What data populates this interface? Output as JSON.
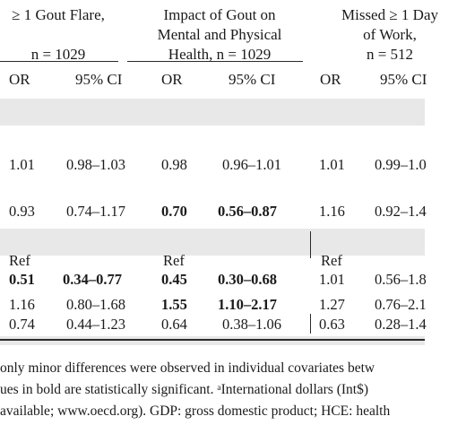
{
  "headers": {
    "col1": [
      "≥ 1 Gout Flare,",
      "n = 1029"
    ],
    "col2": [
      "Impact of Gout on",
      "Mental and Physical",
      "Health, n = 1029"
    ],
    "col3": [
      "Missed ≥ 1 Day",
      "of Work,",
      "n = 512"
    ]
  },
  "subheaders": {
    "or": "OR",
    "ci": "95% CI"
  },
  "rows": [
    [
      "1.01",
      "0.98–1.03",
      "0.98",
      "0.96–1.01",
      "1.01",
      "0.99–1.0"
    ],
    [
      "0.93",
      "0.74–1.17",
      "0.70",
      "0.56–0.87",
      "1.16",
      "0.92–1.4"
    ],
    [
      "Ref",
      "",
      "Ref",
      "",
      "Ref",
      ""
    ],
    [
      "0.51",
      "0.34–0.77",
      "0.45",
      "0.30–0.68",
      "1.01",
      "0.56–1.8"
    ],
    [
      "1.16",
      "0.80–1.68",
      "1.55",
      "1.10–2.17",
      "1.27",
      "0.76–2.1"
    ],
    [
      "0.74",
      "0.44–1.23",
      "0.64",
      "0.38–1.06",
      "0.63",
      "0.28–1.4"
    ]
  ],
  "footnote": [
    "only minor differences were observed in individual covariates betw",
    "ues in bold are statistically significant. ᵃInternational dollars (Int$)",
    "available; www.oecd.org). GDP: gross domestic product; HCE: health"
  ]
}
